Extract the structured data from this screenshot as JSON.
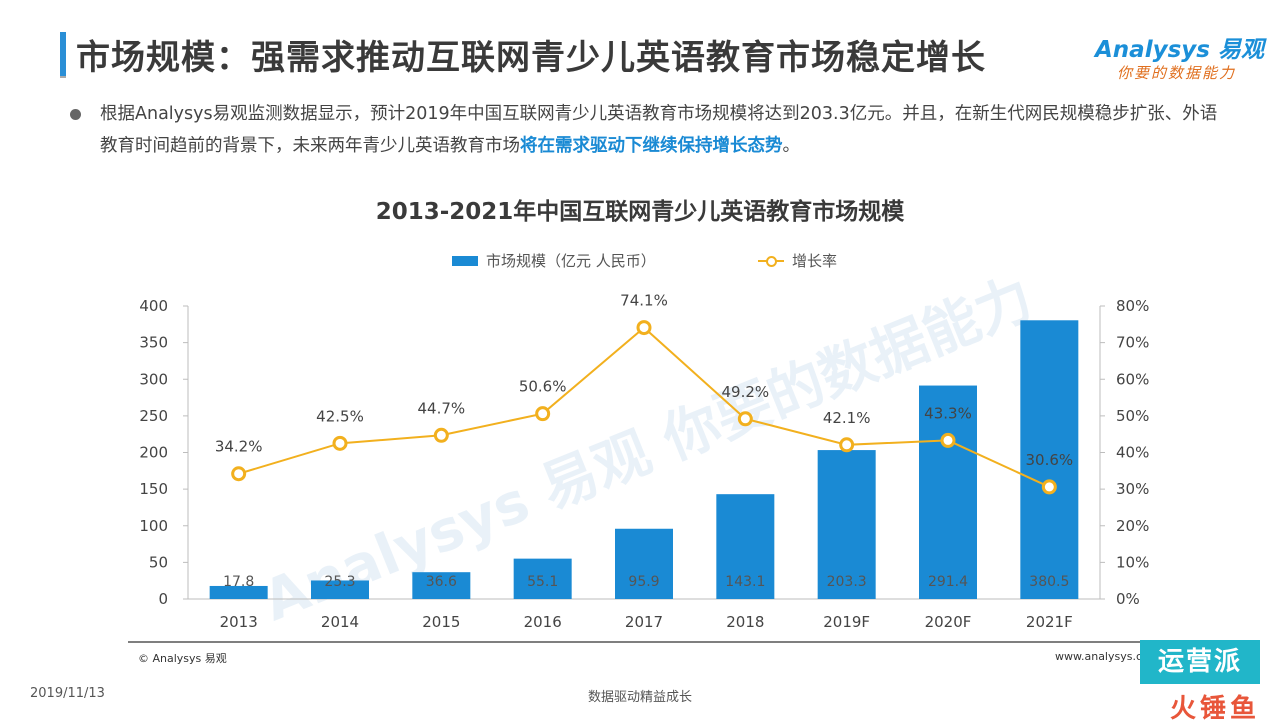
{
  "header": {
    "title": "市场规模：强需求推动互联网青少儿英语教育市场稳定增长",
    "logo_name": "Analysys 易观",
    "logo_tag": "你要的数据能力"
  },
  "bullet": {
    "text_before": "根据Analysys易观监测数据显示，预计2019年中国互联网青少儿英语教育市场规模将达到203.3亿元。并且，在新生代网民规模稳步扩张、外语教育时间趋前的背景下，未来两年青少儿英语教育市场",
    "highlight": "将在需求驱动下继续保持增长态势",
    "text_after": "。"
  },
  "chart_data": {
    "type": "bar",
    "title": "2013-2021年中国互联网青少儿英语教育市场规模",
    "categories": [
      "2013",
      "2014",
      "2015",
      "2016",
      "2017",
      "2018",
      "2019F",
      "2020F",
      "2021F"
    ],
    "series": [
      {
        "name": "市场规模（亿元 人民币）",
        "type": "bar",
        "axis": "left",
        "values": [
          17.8,
          25.3,
          36.6,
          55.1,
          95.9,
          143.1,
          203.3,
          291.4,
          380.5
        ],
        "labels": [
          "17.8",
          "25.3",
          "36.6",
          "55.1",
          "95.9",
          "143.1",
          "203.3",
          "291.4",
          "380.5"
        ]
      },
      {
        "name": "增长率",
        "type": "line",
        "axis": "right",
        "values": [
          34.2,
          42.5,
          44.7,
          50.6,
          74.1,
          49.2,
          42.1,
          43.3,
          30.6
        ],
        "labels": [
          "34.2%",
          "42.5%",
          "44.7%",
          "50.6%",
          "74.1%",
          "49.2%",
          "42.1%",
          "43.3%",
          "30.6%"
        ]
      }
    ],
    "ylim_left": [
      0,
      400
    ],
    "yticks_left": [
      "400",
      "350",
      "300",
      "250",
      "200",
      "150",
      "100",
      "50",
      "0"
    ],
    "ylim_right": [
      0,
      80
    ],
    "yticks_right": [
      "80%",
      "70%",
      "60%",
      "50%",
      "40%",
      "30%",
      "20%",
      "10%",
      "0%"
    ],
    "legend_position": "top-center",
    "grid": false,
    "colors": {
      "bar": "#1a8ad4",
      "line": "#f2b01e"
    },
    "watermark": "Analysys 易观 你要的数据能力"
  },
  "footer": {
    "source_left": "© Analysys 易观",
    "source_right": "www.analysys.cn",
    "date": "2019/11/13",
    "slogan": "数据驱动精益成长",
    "corner_mark_top": "运营派",
    "corner_mark_bottom": "火锤鱼"
  }
}
